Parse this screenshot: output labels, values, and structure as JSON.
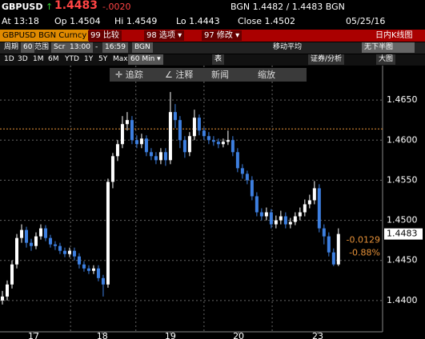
{
  "header": {
    "ticker": "GBPUSD",
    "arrow": "↑",
    "last": "1.4483",
    "change": "-.0020",
    "quote": "BGN 1.4482 / 1.4483 BGN",
    "time": "At 13:18",
    "open": "Op 1.4504",
    "high": "Hi 1.4549",
    "low": "Lo 1.4443",
    "close": "Close 1.4502",
    "date": "05/25/16"
  },
  "menu": {
    "security": "GBPUSD BGN Curncy",
    "compare": "99 比较",
    "options": "98 选项 ▾",
    "edit": "97 修改 ▾",
    "title": "日内K线图"
  },
  "settings": [
    "周期",
    "60",
    "范围",
    "Scr",
    "13:00",
    "-",
    "16:59",
    "BGN",
    "移动平均",
    "无下半图"
  ],
  "periods": [
    "1D",
    "3D",
    "1M",
    "6M",
    "YTD",
    "1Y",
    "5Y",
    "Max",
    "60 Min ▾"
  ],
  "tools": [
    "表",
    "证券/分析",
    "大图"
  ],
  "toolbar": [
    "✛ 追踪",
    "∠ 注释",
    "新闻",
    "缩放"
  ],
  "chart_data": {
    "type": "candlestick",
    "open": [
      1.44,
      1.4405,
      1.442,
      1.4445,
      1.4478,
      1.4488,
      1.4472,
      1.4468,
      1.448,
      1.449,
      1.4478,
      1.447,
      1.4468,
      1.4462,
      1.4458,
      1.4462,
      1.4455,
      1.4445,
      1.444,
      1.4437,
      1.444,
      1.4428,
      1.442,
      1.4548,
      1.458,
      1.4595,
      1.462,
      1.4625,
      1.46,
      1.4595,
      1.4602,
      1.4585,
      1.458,
      1.4575,
      1.4585,
      1.4575,
      1.4635,
      1.4625,
      1.46,
      1.4585,
      1.4605,
      1.4628,
      1.4612,
      1.4605,
      1.46,
      1.4598,
      1.4595,
      1.4598,
      1.46,
      1.4585,
      1.4565,
      1.4558,
      1.455,
      1.453,
      1.451,
      1.4505,
      1.451,
      1.4495,
      1.45,
      1.4505,
      1.4495,
      1.4498,
      1.4505,
      1.451,
      1.452,
      1.4525,
      1.454,
      1.449,
      1.448,
      1.446,
      1.4445
    ],
    "high": [
      1.4412,
      1.4425,
      1.445,
      1.4483,
      1.4495,
      1.4492,
      1.4477,
      1.4485,
      1.4495,
      1.4494,
      1.4482,
      1.4474,
      1.4472,
      1.4466,
      1.4466,
      1.4466,
      1.4459,
      1.4449,
      1.4444,
      1.4444,
      1.4444,
      1.4432,
      1.4552,
      1.4584,
      1.46,
      1.463,
      1.4635,
      1.463,
      1.4606,
      1.4608,
      1.4606,
      1.459,
      1.4585,
      1.459,
      1.459,
      1.466,
      1.4645,
      1.463,
      1.4605,
      1.461,
      1.4638,
      1.4632,
      1.4616,
      1.461,
      1.4605,
      1.4602,
      1.4602,
      1.4612,
      1.4605,
      1.459,
      1.457,
      1.4562,
      1.4555,
      1.4535,
      1.4515,
      1.4516,
      1.4514,
      1.4506,
      1.4512,
      1.451,
      1.4503,
      1.451,
      1.4516,
      1.4526,
      1.4532,
      1.4549,
      1.4545,
      1.4495,
      1.4485,
      1.4465,
      1.449
    ],
    "low": [
      1.4395,
      1.44,
      1.4415,
      1.444,
      1.4472,
      1.4466,
      1.4462,
      1.4464,
      1.4476,
      1.4474,
      1.4466,
      1.4463,
      1.4458,
      1.4454,
      1.4454,
      1.445,
      1.444,
      1.4436,
      1.4433,
      1.4433,
      1.4424,
      1.4405,
      1.4416,
      1.454,
      1.4574,
      1.459,
      1.4612,
      1.4595,
      1.459,
      1.459,
      1.458,
      1.4575,
      1.457,
      1.457,
      1.4568,
      1.457,
      1.4615,
      1.459,
      1.4578,
      1.458,
      1.46,
      1.4606,
      1.46,
      1.4595,
      1.4593,
      1.459,
      1.4591,
      1.4594,
      1.458,
      1.456,
      1.4552,
      1.4545,
      1.4525,
      1.4505,
      1.45,
      1.45,
      1.449,
      1.449,
      1.4495,
      1.449,
      1.449,
      1.4494,
      1.45,
      1.4505,
      1.4515,
      1.452,
      1.4485,
      1.447,
      1.4455,
      1.4443,
      1.4443
    ],
    "close": [
      1.4405,
      1.442,
      1.4445,
      1.4478,
      1.4488,
      1.4472,
      1.4468,
      1.448,
      1.449,
      1.4478,
      1.447,
      1.4468,
      1.4462,
      1.4458,
      1.4462,
      1.4455,
      1.4445,
      1.444,
      1.4437,
      1.444,
      1.4428,
      1.442,
      1.4548,
      1.458,
      1.4595,
      1.462,
      1.4625,
      1.46,
      1.4595,
      1.4602,
      1.4585,
      1.458,
      1.4575,
      1.4585,
      1.4575,
      1.4635,
      1.4625,
      1.46,
      1.4585,
      1.4605,
      1.4628,
      1.4612,
      1.4605,
      1.46,
      1.4598,
      1.4595,
      1.4598,
      1.46,
      1.4585,
      1.4565,
      1.4558,
      1.455,
      1.453,
      1.451,
      1.4505,
      1.451,
      1.4495,
      1.45,
      1.4505,
      1.4495,
      1.4498,
      1.4505,
      1.451,
      1.452,
      1.4525,
      1.454,
      1.449,
      1.448,
      1.446,
      1.4445,
      1.4483
    ],
    "up_color": "#ffffff",
    "down_color": "#3d7fe0",
    "xlim": [
      -0.5,
      79.2
    ],
    "xticks": [
      {
        "value": 6.5,
        "label": "17"
      },
      {
        "value": 20.8,
        "label": "18"
      },
      {
        "value": 35,
        "label": "19"
      },
      {
        "value": 49.2,
        "label": "20"
      },
      {
        "value": 65.7,
        "label": "23"
      }
    ],
    "xgrid": [
      14.2,
      27.8,
      42,
      56.2
    ],
    "ylim": [
      1.4361,
      1.4693
    ],
    "yticks": [
      {
        "value": 1.465,
        "label": "1.4650"
      },
      {
        "value": 1.46,
        "label": "1.4600"
      },
      {
        "value": 1.455,
        "label": "1.4550"
      },
      {
        "value": 1.45,
        "label": "1.4500"
      },
      {
        "value": 1.445,
        "label": "1.4450"
      },
      {
        "value": 1.44,
        "label": "1.4400"
      }
    ],
    "reference_line": {
      "value": 1.4614,
      "color": "#e69138"
    },
    "last_value": 1.4483,
    "annotations": [
      "-0.0129",
      "-0.88%"
    ]
  }
}
